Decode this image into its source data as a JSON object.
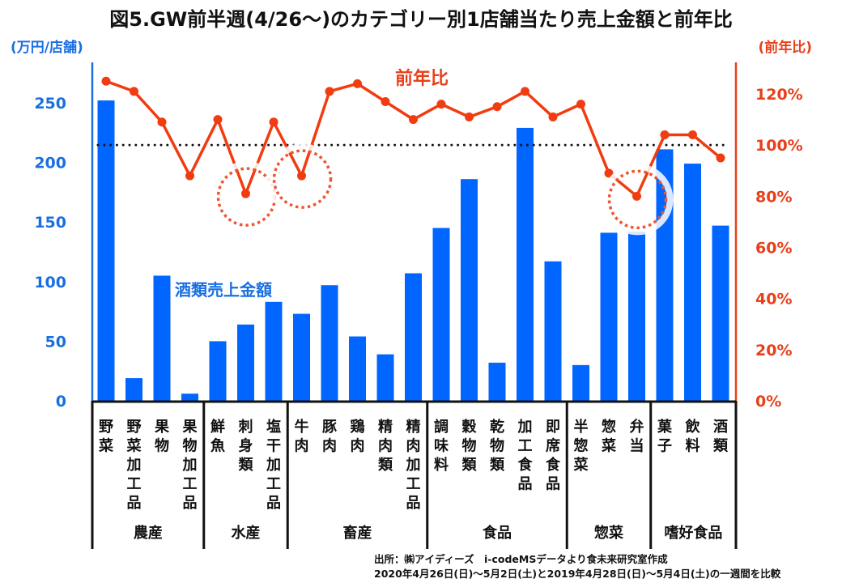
{
  "chart_data": {
    "type": "bar",
    "title": "図5.GW前半週(4/26～)のカテゴリー別1店舗当たり売上金額と前年比",
    "y_left_label": "(万円/店舗)",
    "y_right_label": "(前年比)",
    "y_left_ticks": [
      "0",
      "50",
      "100",
      "150",
      "200",
      "250"
    ],
    "y_left_tick_values": [
      0,
      50,
      100,
      150,
      200,
      250
    ],
    "y_right_ticks": [
      "0%",
      "20%",
      "40%",
      "60%",
      "80%",
      "100%",
      "120%"
    ],
    "y_right_tick_values": [
      0,
      20,
      40,
      60,
      80,
      100,
      120
    ],
    "ylim_left": [
      0,
      250
    ],
    "ylim_right": [
      0,
      120
    ],
    "reference_line_right": 100,
    "grid": false,
    "categories": [
      "野菜",
      "野菜加工品",
      "果物",
      "果物加工品",
      "鮮魚",
      "刺身類",
      "塩干加工品",
      "牛肉",
      "豚肉",
      "鶏肉",
      "精肉類",
      "精肉加工品",
      "調味料",
      "穀物類",
      "乾物類",
      "加工食品",
      "即席食品",
      "半惣菜",
      "惣菜",
      "弁当",
      "菓子",
      "飲料",
      "酒類"
    ],
    "groups": [
      {
        "name": "農産",
        "count": 4
      },
      {
        "name": "水産",
        "count": 3
      },
      {
        "name": "畜産",
        "count": 5
      },
      {
        "name": "食品",
        "count": 5
      },
      {
        "name": "惣菜",
        "count": 3
      },
      {
        "name": "嗜好食品",
        "count": 3
      }
    ],
    "series": [
      {
        "name": "酒類売上金額",
        "type": "bar",
        "axis": "left",
        "color": "#0066ff",
        "values": [
          252,
          19,
          105,
          6,
          50,
          64,
          83,
          73,
          97,
          54,
          39,
          107,
          145,
          186,
          32,
          229,
          117,
          30,
          141,
          142,
          211,
          199,
          147
        ]
      },
      {
        "name": "前年比",
        "type": "line",
        "axis": "right",
        "unit": "%",
        "color": "#f03c10",
        "values": [
          125,
          121,
          109,
          88,
          110,
          81,
          109,
          88,
          121,
          124,
          117,
          110,
          116,
          111,
          115,
          121,
          111,
          116,
          89,
          80,
          104,
          104,
          95
        ]
      }
    ],
    "highlights": [
      {
        "category": "刺身類",
        "shape": "dotted-circle"
      },
      {
        "category": "牛肉",
        "shape": "dotted-circle"
      },
      {
        "category": "弁当",
        "shape": "dotted-circle"
      }
    ],
    "legend": "inline-annotations"
  },
  "footer": {
    "line1": "出所：㈱アイディーズ　i-codeMSデータより食未来研究室作成",
    "line2": "2020年4月26日(日)～5月2日(土)と2019年4月28日(日)～5月4日(土)の一週間を比較"
  },
  "colors": {
    "bar": "#0066ff",
    "line": "#f03c10",
    "left_axis": "#1a6fe0",
    "right_axis": "#e8401a",
    "reference": "#111111"
  }
}
